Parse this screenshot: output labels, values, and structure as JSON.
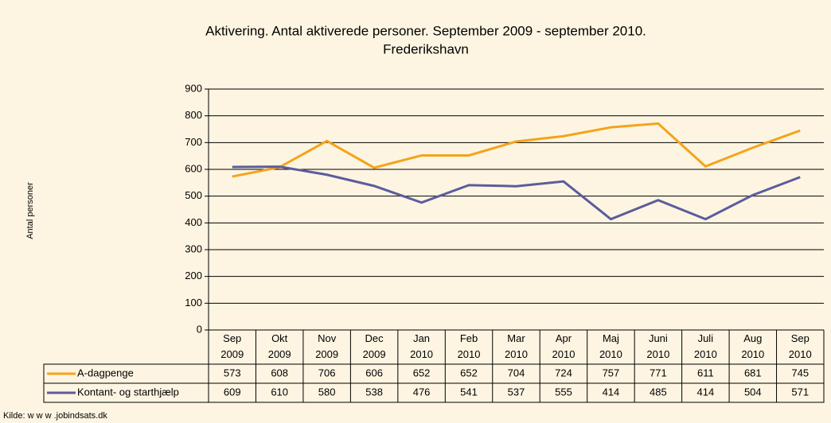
{
  "chart_data": {
    "type": "line",
    "title": "Aktivering. Antal aktiverede personer. September 2009 - september 2010.",
    "subtitle": "Frederikshavn",
    "y_label": "Antal personer",
    "source": "Kilde: w w w .jobindsats.dk",
    "categories": [
      "Sep 2009",
      "Okt 2009",
      "Nov 2009",
      "Dec 2009",
      "Jan 2010",
      "Feb 2010",
      "Mar 2010",
      "Apr 2010",
      "Maj 2010",
      "Juni 2010",
      "Juli 2010",
      "Aug 2010",
      "Sep 2010"
    ],
    "series": [
      {
        "name": "A-dagpenge",
        "color": "#f5a31a",
        "values": [
          573,
          608,
          706,
          606,
          652,
          652,
          704,
          724,
          757,
          771,
          611,
          681,
          745
        ]
      },
      {
        "name": "Kontant- og starthjælp",
        "color": "#5c5c9c",
        "values": [
          609,
          610,
          580,
          538,
          476,
          541,
          537,
          555,
          414,
          485,
          414,
          504,
          571
        ]
      }
    ],
    "ylim": [
      0,
      900
    ],
    "yticks": [
      0,
      100,
      200,
      300,
      400,
      500,
      600,
      700,
      800,
      900
    ],
    "grid": true
  }
}
